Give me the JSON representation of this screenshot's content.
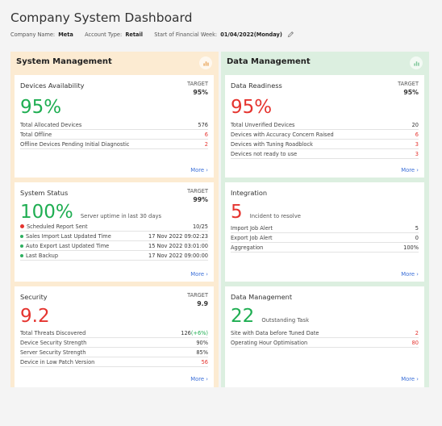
{
  "page": {
    "title": "Company System Dashboard",
    "company_name_label": "Company Name:",
    "company_name": "Meta",
    "account_type_label": "Account Type:",
    "account_type": "Retail",
    "fin_week_label": "Start of Financial Week:",
    "fin_week": "01/04/2022(Monday)"
  },
  "colors": {
    "green": "#1fae52",
    "red": "#e5342f",
    "link": "#3b6fd8",
    "left_bg": "#fcebd2",
    "right_bg": "#dcefe0"
  },
  "system_management": {
    "title": "System Management",
    "devices": {
      "title": "Devices Availability",
      "target_label": "TARGET",
      "target_value": "95%",
      "big": "95%",
      "rows": [
        {
          "label": "Total Allocated Devices",
          "value": "576"
        },
        {
          "label": "Total Offline",
          "value": "6"
        },
        {
          "label": "Offline Devices Pending Initial Diagnostic",
          "value": "2"
        }
      ],
      "more": "More ›"
    },
    "status": {
      "title": "System Status",
      "target_label": "TARGET",
      "target_value": "99%",
      "big": "100%",
      "caption": "Server uptime in last 30 days",
      "rows": [
        {
          "label": "Scheduled Report Sent",
          "value": "10/25"
        },
        {
          "label": "Sales Import Last Updated Time",
          "value": "17 Nov 2022 09:02:23"
        },
        {
          "label": "Auto Export Last Updated Time",
          "value": "15 Nov 2022 03:01:00"
        },
        {
          "label": "Last Backup",
          "value": "17 Nov 2022 09:00:00"
        }
      ],
      "more": "More ›"
    },
    "security": {
      "title": "Security",
      "target_label": "TARGET",
      "target_value": "9.9",
      "big": "9.2",
      "rows": [
        {
          "label": "Total Threats Discovered",
          "value": "126",
          "extra": "(+6%)"
        },
        {
          "label": "Device Security Strength",
          "value": "90%"
        },
        {
          "label": "Server Security Strength",
          "value": "85%"
        },
        {
          "label": "Device in Low Patch Version",
          "value": "56"
        }
      ],
      "more": "More ›"
    }
  },
  "data_management": {
    "title": "Data Management",
    "readiness": {
      "title": "Data Readiness",
      "target_label": "TARGET",
      "target_value": "95%",
      "big": "95%",
      "rows": [
        {
          "label": "Total Unverified Devices",
          "value": "20"
        },
        {
          "label": "Devices with Accuracy Concern Raised",
          "value": "6"
        },
        {
          "label": "Devices with Tuning Roadblock",
          "value": "3"
        },
        {
          "label": "Devices not ready to use",
          "value": "3"
        }
      ],
      "more": "More ›"
    },
    "integration": {
      "title": "Integration",
      "big": "5",
      "caption": "Incident to resolve",
      "rows": [
        {
          "label": "Import Job Alert",
          "value": "5"
        },
        {
          "label": "Export Job Alert",
          "value": "0"
        },
        {
          "label": "Aggregation",
          "value": "100%"
        }
      ],
      "more": "More ›"
    },
    "dm": {
      "title": "Data Management",
      "big": "22",
      "caption": "Outstanding Task",
      "rows": [
        {
          "label": "Site with Data before Tuned Date",
          "value": "2"
        },
        {
          "label": "Operating Hour Optimisation",
          "value": "80"
        }
      ],
      "more": "More ›"
    }
  }
}
